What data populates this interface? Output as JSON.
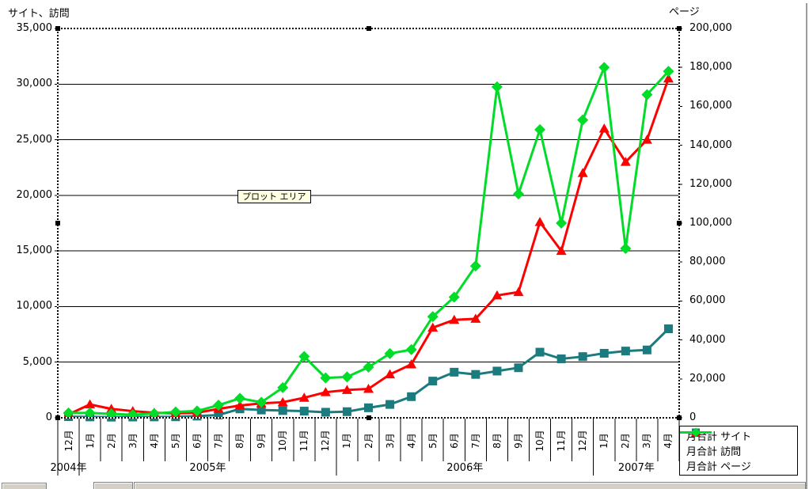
{
  "titles": {
    "left_axis": "サイト、訪問",
    "right_axis": "ページ"
  },
  "tooltip": {
    "text": "プロット エリア"
  },
  "chart_data": {
    "type": "line",
    "title": "",
    "grid": true,
    "legend_position": "bottom-right",
    "x_categories": [
      "12月",
      "1月",
      "2月",
      "3月",
      "4月",
      "5月",
      "6月",
      "7月",
      "8月",
      "9月",
      "10月",
      "11月",
      "12月",
      "1月",
      "2月",
      "3月",
      "4月",
      "5月",
      "6月",
      "7月",
      "8月",
      "9月",
      "10月",
      "11月",
      "12月",
      "1月",
      "2月",
      "3月",
      "4月"
    ],
    "year_groups": [
      {
        "label": "2004年",
        "span": 1
      },
      {
        "label": "2005年",
        "span": 12
      },
      {
        "label": "2006年",
        "span": 12
      },
      {
        "label": "2007年",
        "span": 4
      }
    ],
    "left_axis": {
      "title": "サイト、訪問",
      "min": 0,
      "max": 35000,
      "tick_interval": 5000,
      "tick_labels": [
        "0",
        "5,000",
        "10,000",
        "15,000",
        "20,000",
        "25,000",
        "30,000",
        "35,000"
      ]
    },
    "right_axis": {
      "title": "ページ",
      "min": 0,
      "max": 200000,
      "tick_interval": 20000,
      "tick_labels": [
        "0",
        "20,000",
        "40,000",
        "60,000",
        "80,000",
        "100,000",
        "120,000",
        "140,000",
        "160,000",
        "180,000",
        "200,000"
      ]
    },
    "series": [
      {
        "name": "月合計 サイト",
        "axis": "left",
        "marker": "square",
        "color": "#1b7b7e",
        "values": [
          100,
          80,
          60,
          70,
          80,
          90,
          150,
          250,
          800,
          700,
          650,
          600,
          500,
          550,
          900,
          1200,
          1900,
          3300,
          4100,
          3900,
          4200,
          4500,
          5900,
          5300,
          5500,
          5800,
          6000,
          6100,
          8000
        ]
      },
      {
        "name": "月合計 訪問",
        "axis": "left",
        "marker": "triangle",
        "color": "#ff0000",
        "values": [
          300,
          1200,
          800,
          600,
          450,
          400,
          450,
          800,
          1100,
          1300,
          1400,
          1800,
          2300,
          2500,
          2600,
          3900,
          4800,
          8100,
          8800,
          8900,
          11000,
          11300,
          17600,
          15000,
          22000,
          26000,
          23000,
          25000,
          30500
        ]
      },
      {
        "name": "月合計 ページ",
        "axis": "right",
        "marker": "diamond",
        "color": "#00dc28",
        "values": [
          2500,
          2500,
          2000,
          1600,
          2200,
          3000,
          3500,
          6500,
          10000,
          8000,
          15500,
          31500,
          20500,
          21000,
          26000,
          33000,
          35000,
          52000,
          62000,
          78000,
          170000,
          115000,
          148000,
          100000,
          153000,
          180000,
          87000,
          166000,
          178000
        ]
      }
    ]
  }
}
